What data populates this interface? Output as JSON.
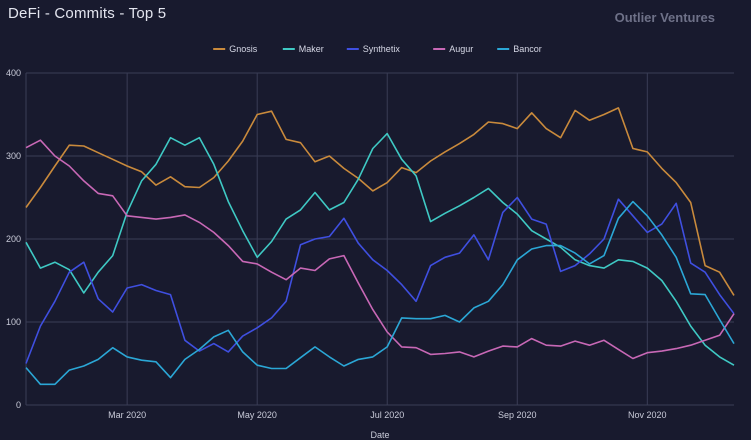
{
  "header": {
    "title": "DeFi - Commits - Top 5",
    "brand": "Outlier Ventures"
  },
  "chart_data": {
    "type": "line",
    "title": "DeFi - Commits - Top 5",
    "xlabel": "Date",
    "ylabel": "",
    "ylim": [
      0,
      400
    ],
    "yticks": [
      0,
      100,
      200,
      300,
      400
    ],
    "xticks": [
      {
        "label": "Mar 2020",
        "week": 7
      },
      {
        "label": "May 2020",
        "week": 16
      },
      {
        "label": "Jul 2020",
        "week": 25
      },
      {
        "label": "Sep 2020",
        "week": 34
      },
      {
        "label": "Nov 2020",
        "week": 43
      }
    ],
    "grid": true,
    "legend_position": "top-center",
    "x_start": "2020-01-06",
    "x_step": "1 week",
    "series": [
      {
        "name": "Gnosis",
        "color": "#c98a3c",
        "values": [
          238,
          262,
          288,
          313,
          312,
          304,
          296,
          288,
          281,
          265,
          275,
          263,
          262,
          274,
          294,
          318,
          350,
          354,
          320,
          316,
          293,
          300,
          285,
          273,
          258,
          268,
          286,
          280,
          294,
          305,
          315,
          326,
          341,
          339,
          333,
          352,
          333,
          322,
          355,
          343,
          350,
          358,
          309,
          305,
          285,
          268,
          244,
          168,
          160,
          132
        ]
      },
      {
        "name": "Maker",
        "color": "#3fc9c4",
        "values": [
          196,
          165,
          172,
          163,
          135,
          160,
          180,
          232,
          270,
          290,
          322,
          313,
          322,
          290,
          245,
          210,
          178,
          197,
          224,
          235,
          256,
          235,
          244,
          272,
          309,
          327,
          296,
          276,
          221,
          231,
          240,
          250,
          261,
          244,
          230,
          210,
          200,
          190,
          175,
          168,
          165,
          175,
          173,
          165,
          150,
          125,
          95,
          72,
          58,
          48
        ]
      },
      {
        "name": "Synthetix",
        "color": "#3f4fe0",
        "values": [
          50,
          95,
          125,
          160,
          172,
          128,
          112,
          141,
          145,
          138,
          133,
          78,
          65,
          74,
          64,
          83,
          93,
          105,
          125,
          193,
          200,
          203,
          225,
          195,
          175,
          162,
          145,
          125,
          168,
          178,
          183,
          205,
          175,
          232,
          250,
          224,
          218,
          161,
          168,
          182,
          200,
          248,
          228,
          208,
          218,
          243,
          171,
          160,
          133,
          110
        ]
      },
      {
        "name": "Augur",
        "color": "#c868b6",
        "values": [
          310,
          319,
          300,
          288,
          270,
          255,
          252,
          228,
          226,
          224,
          226,
          229,
          220,
          208,
          192,
          173,
          170,
          160,
          151,
          165,
          162,
          176,
          180,
          147,
          115,
          88,
          70,
          69,
          61,
          62,
          64,
          58,
          65,
          71,
          70,
          80,
          72,
          71,
          77,
          72,
          78,
          67,
          56,
          63,
          65,
          68,
          72,
          78,
          84,
          110
        ]
      },
      {
        "name": "Bancor",
        "color": "#2ba7d6",
        "values": [
          45,
          25,
          25,
          42,
          47,
          55,
          69,
          58,
          54,
          52,
          33,
          55,
          67,
          82,
          90,
          64,
          48,
          44,
          44,
          57,
          70,
          58,
          47,
          55,
          58,
          70,
          105,
          104,
          104,
          108,
          100,
          117,
          125,
          145,
          175,
          188,
          192,
          192,
          183,
          170,
          180,
          225,
          245,
          228,
          205,
          178,
          134,
          133,
          103,
          74
        ]
      }
    ]
  }
}
